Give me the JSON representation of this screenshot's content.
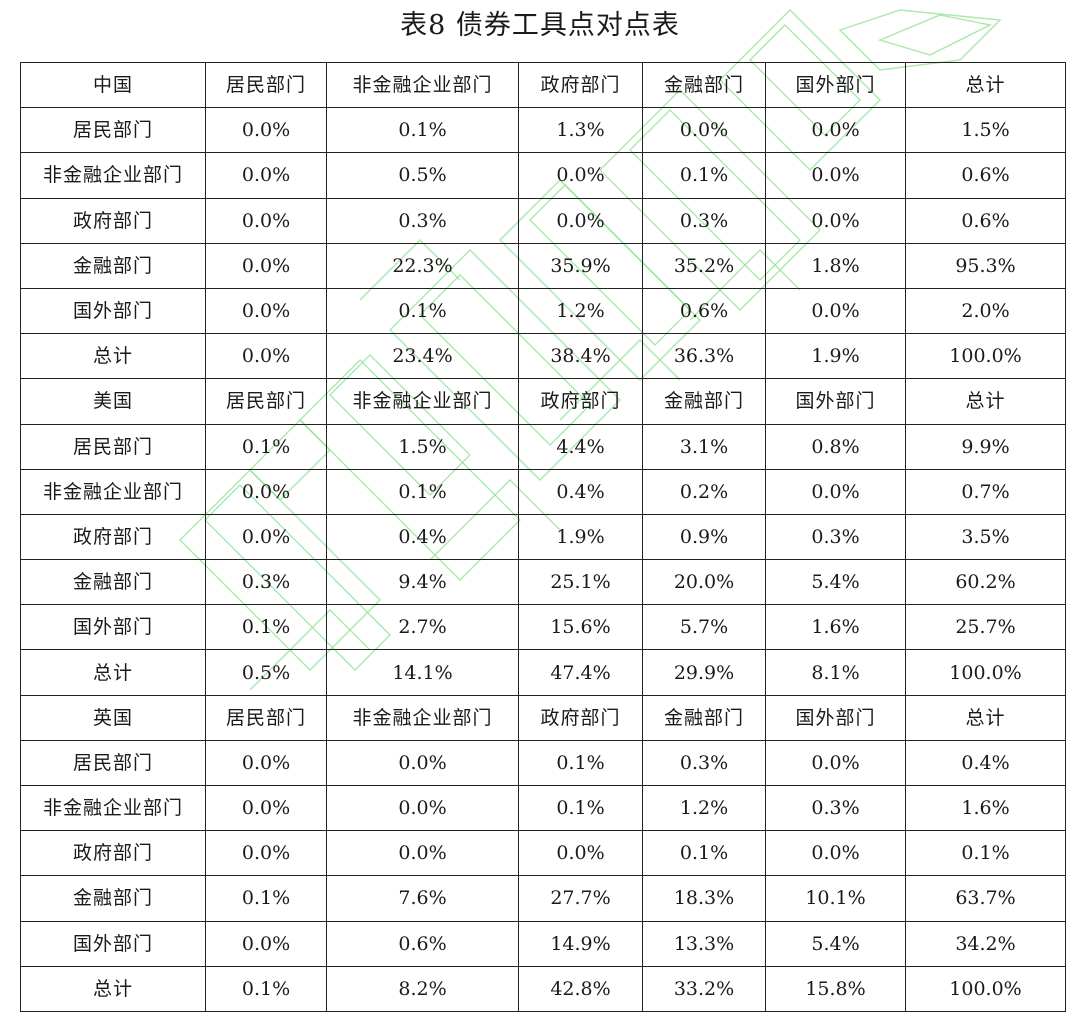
{
  "title": "表8 债券工具点对点表",
  "watermark_color": "#8fe08f",
  "columns": [
    "居民部门",
    "非金融企业部门",
    "政府部门",
    "金融部门",
    "国外部门",
    "总计"
  ],
  "sections": [
    {
      "country": "中国",
      "rows": [
        {
          "label": "居民部门",
          "values": [
            "0.0%",
            "0.1%",
            "1.3%",
            "0.0%",
            "0.0%",
            "1.5%"
          ]
        },
        {
          "label": "非金融企业部门",
          "values": [
            "0.0%",
            "0.5%",
            "0.0%",
            "0.1%",
            "0.0%",
            "0.6%"
          ]
        },
        {
          "label": "政府部门",
          "values": [
            "0.0%",
            "0.3%",
            "0.0%",
            "0.3%",
            "0.0%",
            "0.6%"
          ]
        },
        {
          "label": "金融部门",
          "values": [
            "0.0%",
            "22.3%",
            "35.9%",
            "35.2%",
            "1.8%",
            "95.3%"
          ]
        },
        {
          "label": "国外部门",
          "values": [
            "0.0%",
            "0.1%",
            "1.2%",
            "0.6%",
            "0.0%",
            "2.0%"
          ]
        },
        {
          "label": "总计",
          "values": [
            "0.0%",
            "23.4%",
            "38.4%",
            "36.3%",
            "1.9%",
            "100.0%"
          ]
        }
      ]
    },
    {
      "country": "美国",
      "rows": [
        {
          "label": "居民部门",
          "values": [
            "0.1%",
            "1.5%",
            "4.4%",
            "3.1%",
            "0.8%",
            "9.9%"
          ]
        },
        {
          "label": "非金融企业部门",
          "values": [
            "0.0%",
            "0.1%",
            "0.4%",
            "0.2%",
            "0.0%",
            "0.7%"
          ]
        },
        {
          "label": "政府部门",
          "values": [
            "0.0%",
            "0.4%",
            "1.9%",
            "0.9%",
            "0.3%",
            "3.5%"
          ]
        },
        {
          "label": "金融部门",
          "values": [
            "0.3%",
            "9.4%",
            "25.1%",
            "20.0%",
            "5.4%",
            "60.2%"
          ]
        },
        {
          "label": "国外部门",
          "values": [
            "0.1%",
            "2.7%",
            "15.6%",
            "5.7%",
            "1.6%",
            "25.7%"
          ]
        },
        {
          "label": "总计",
          "values": [
            "0.5%",
            "14.1%",
            "47.4%",
            "29.9%",
            "8.1%",
            "100.0%"
          ]
        }
      ]
    },
    {
      "country": "英国",
      "rows": [
        {
          "label": "居民部门",
          "values": [
            "0.0%",
            "0.0%",
            "0.1%",
            "0.3%",
            "0.0%",
            "0.4%"
          ]
        },
        {
          "label": "非金融企业部门",
          "values": [
            "0.0%",
            "0.0%",
            "0.1%",
            "1.2%",
            "0.3%",
            "1.6%"
          ]
        },
        {
          "label": "政府部门",
          "values": [
            "0.0%",
            "0.0%",
            "0.0%",
            "0.1%",
            "0.0%",
            "0.1%"
          ]
        },
        {
          "label": "金融部门",
          "values": [
            "0.1%",
            "7.6%",
            "27.7%",
            "18.3%",
            "10.1%",
            "63.7%"
          ]
        },
        {
          "label": "国外部门",
          "values": [
            "0.0%",
            "0.6%",
            "14.9%",
            "13.3%",
            "5.4%",
            "34.2%"
          ]
        },
        {
          "label": "总计",
          "values": [
            "0.1%",
            "8.2%",
            "42.8%",
            "33.2%",
            "15.8%",
            "100.0%"
          ]
        }
      ]
    }
  ]
}
